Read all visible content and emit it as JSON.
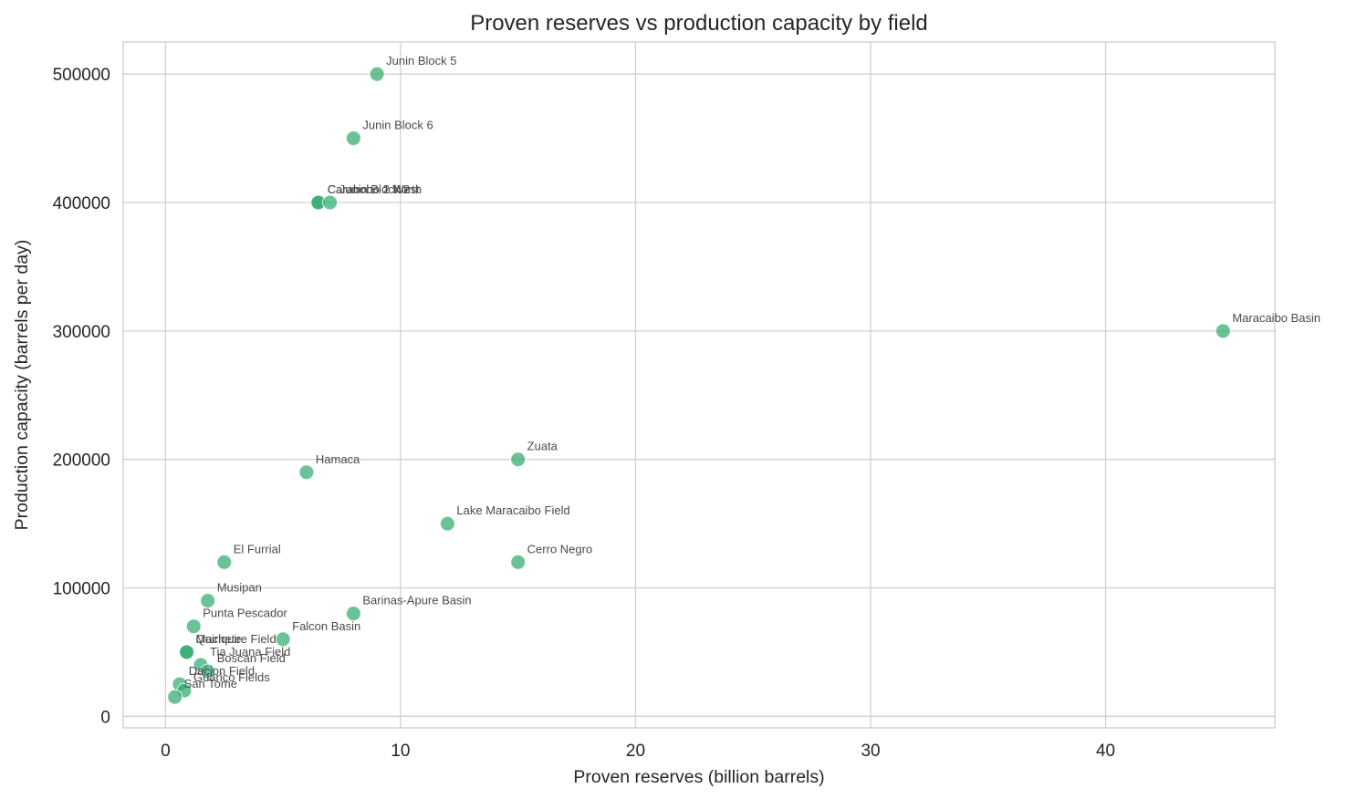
{
  "chart_data": {
    "type": "scatter",
    "title": "Proven reserves vs production capacity by field",
    "xlabel": "Proven reserves (billion barrels)",
    "ylabel": "Production capacity (barrels per day)",
    "xlim": [
      -1.8,
      47.2
    ],
    "ylim": [
      -9000,
      525000
    ],
    "xticks": [
      0,
      10,
      20,
      30,
      40
    ],
    "xtick_labels": [
      "0",
      "10",
      "20",
      "30",
      "40"
    ],
    "yticks": [
      0,
      100000,
      200000,
      300000,
      400000,
      500000
    ],
    "ytick_labels": [
      "0",
      "100000",
      "200000",
      "300000",
      "400000",
      "500000"
    ],
    "grid": true,
    "legend": "none",
    "marker_color": "#2ca86b",
    "points": [
      {
        "label": "Junin Block 5",
        "x": 9.0,
        "y": 500000
      },
      {
        "label": "Junin Block 6",
        "x": 8.0,
        "y": 450000
      },
      {
        "label": "Carabobo 1 North",
        "x": 6.5,
        "y": 400000
      },
      {
        "label": "Carabobo 2 West",
        "x": 6.5,
        "y": 400000
      },
      {
        "label": "Junin Block 2",
        "x": 7.0,
        "y": 400000
      },
      {
        "label": "Maracaibo Basin",
        "x": 45.0,
        "y": 300000
      },
      {
        "label": "Zuata",
        "x": 15.0,
        "y": 200000
      },
      {
        "label": "Hamaca",
        "x": 6.0,
        "y": 190000
      },
      {
        "label": "Lake Maracaibo Field",
        "x": 12.0,
        "y": 150000
      },
      {
        "label": "Cerro Negro",
        "x": 15.0,
        "y": 120000
      },
      {
        "label": "El Furrial",
        "x": 2.5,
        "y": 120000
      },
      {
        "label": "Musipan",
        "x": 1.8,
        "y": 90000
      },
      {
        "label": "Barinas-Apure Basin",
        "x": 8.0,
        "y": 80000
      },
      {
        "label": "Punta Pescador",
        "x": 1.2,
        "y": 70000
      },
      {
        "label": "Falcon Basin",
        "x": 5.0,
        "y": 60000
      },
      {
        "label": "Quiriquire Field",
        "x": 0.9,
        "y": 50000
      },
      {
        "label": "Machete",
        "x": 0.9,
        "y": 50000
      },
      {
        "label": "Tia Juana Field",
        "x": 1.5,
        "y": 40000
      },
      {
        "label": "Boscan Field",
        "x": 1.8,
        "y": 35000
      },
      {
        "label": "Dacion Field",
        "x": 0.6,
        "y": 25000
      },
      {
        "label": "Guarico Fields",
        "x": 0.8,
        "y": 20000
      },
      {
        "label": "San Tome",
        "x": 0.4,
        "y": 15000
      }
    ]
  }
}
